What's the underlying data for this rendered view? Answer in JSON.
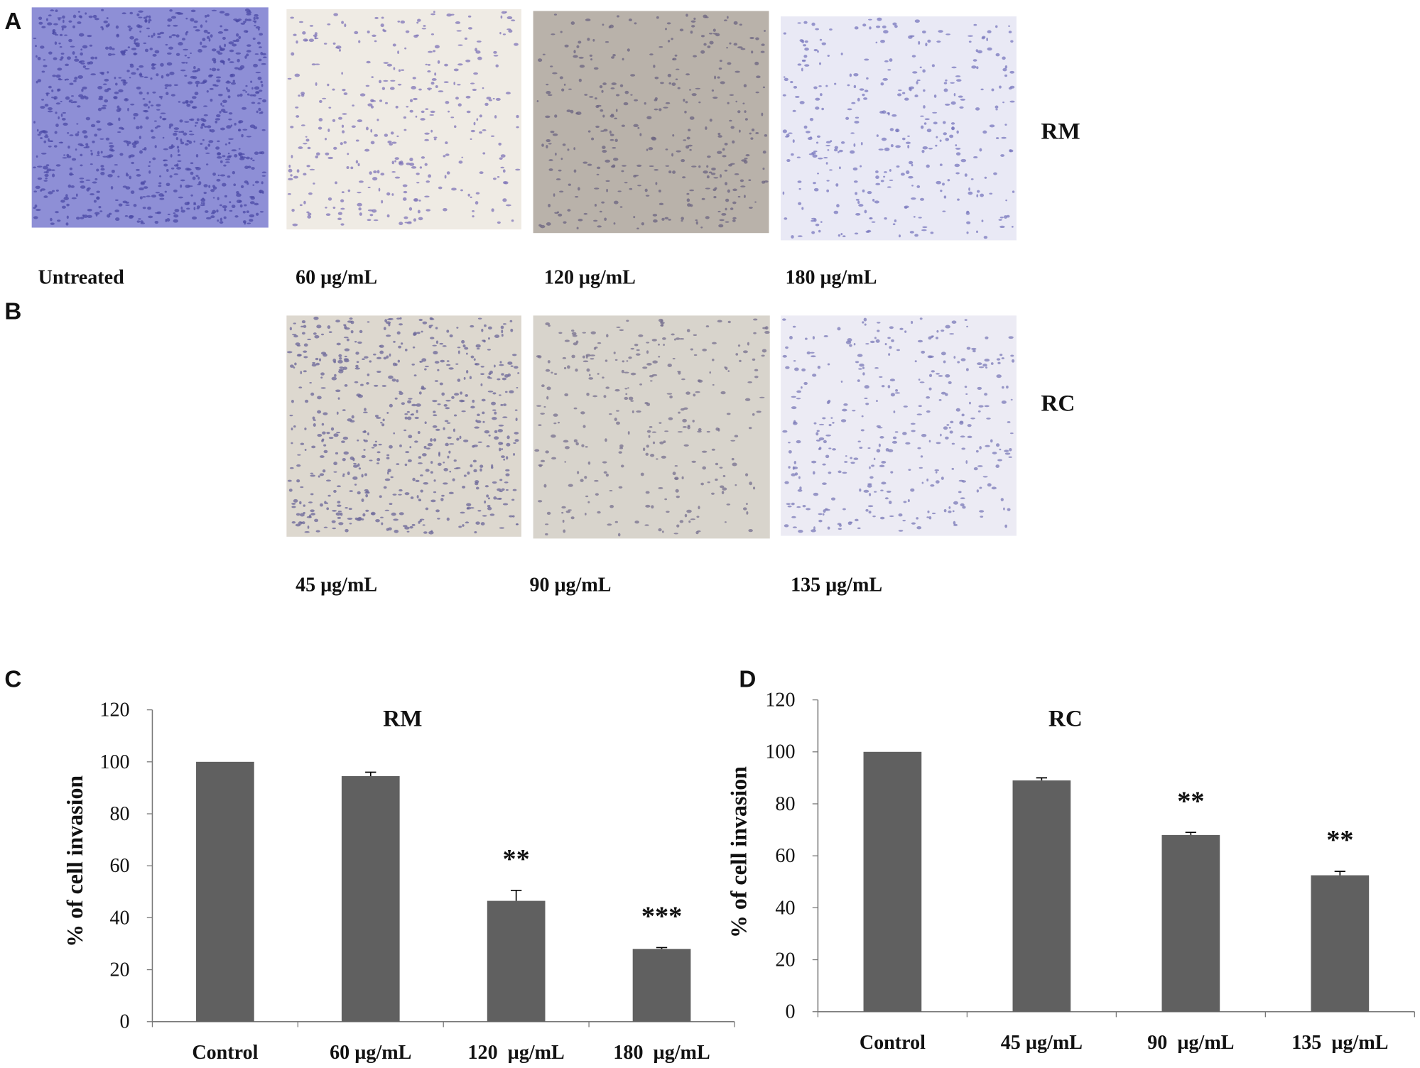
{
  "figure": {
    "panels": [
      {
        "letter": "A",
        "label": "RM",
        "images": [
          {
            "caption": "Untreated"
          },
          {
            "caption": "60 μg/mL"
          },
          {
            "caption": "120 μg/mL"
          },
          {
            "caption": "180 μg/mL"
          }
        ]
      },
      {
        "letter": "B",
        "label": "RC",
        "images": [
          {
            "caption": "45 μg/mL"
          },
          {
            "caption": "90 μg/mL"
          },
          {
            "caption": "135 μg/mL"
          }
        ]
      }
    ]
  },
  "chart_data": [
    {
      "type": "bar",
      "panel_label": "C",
      "title": "RM",
      "y_label": "% of cell invasion",
      "categories": [
        "Control",
        "60 µg/mL",
        "120  µg/mL",
        "180  µg/mL"
      ],
      "values": [
        100,
        94.5,
        46.5,
        28
      ],
      "errors": [
        0,
        1.5,
        4,
        0.5
      ],
      "annotations": [
        null,
        null,
        "**",
        "***"
      ],
      "color": "#606060",
      "ylim": [
        0,
        120
      ],
      "yticks": [
        0,
        20,
        40,
        60,
        80,
        100,
        120
      ]
    },
    {
      "type": "bar",
      "panel_label": "D",
      "title": "RC",
      "y_label": "% of cell invasion",
      "categories": [
        "Control",
        "45 µg/mL",
        "90  µg/mL",
        "135  µg/mL"
      ],
      "values": [
        100,
        89,
        68,
        52.5
      ],
      "errors": [
        0,
        1,
        1,
        1.5
      ],
      "annotations": [
        null,
        null,
        "**",
        "**"
      ],
      "color": "#606060",
      "ylim": [
        0,
        120
      ],
      "yticks": [
        0,
        20,
        40,
        60,
        80,
        100,
        120
      ]
    }
  ]
}
